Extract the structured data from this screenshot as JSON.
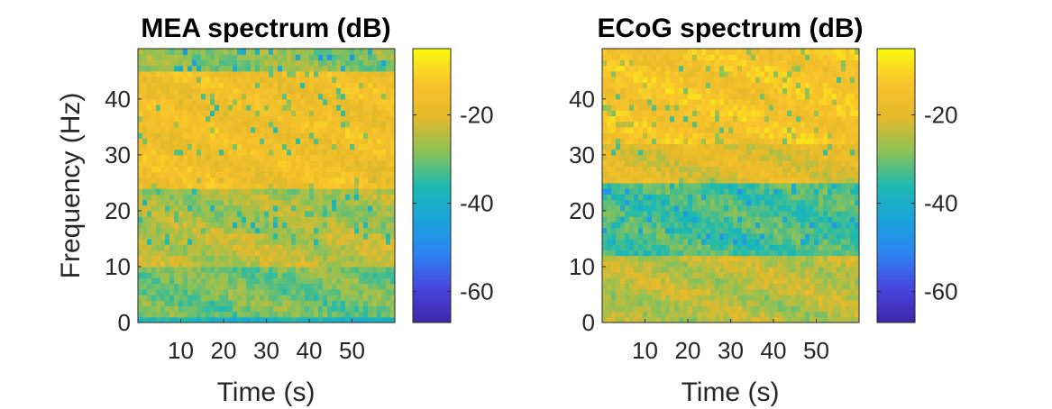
{
  "colormap": "parula",
  "colors": {
    "frame": "#262626",
    "background": "#ffffff"
  },
  "chart_data": [
    {
      "type": "heatmap",
      "title": "MEA spectrum (dB)",
      "xlabel": "Time (s)",
      "ylabel": "Frequency (Hz)",
      "xlim": [
        0,
        60
      ],
      "ylim": [
        0,
        49
      ],
      "xticks": [
        10,
        20,
        30,
        40,
        50
      ],
      "xtick_labels": [
        "10",
        "20",
        "30",
        "40",
        "50"
      ],
      "yticks": [
        0,
        10,
        20,
        30,
        40
      ],
      "ytick_labels": [
        "0",
        "10",
        "20",
        "30",
        "40"
      ],
      "colorbar": {
        "clim": [
          -67,
          -5
        ],
        "ticks": [
          -20,
          -40,
          -60
        ],
        "tick_labels": [
          "-20",
          "-40",
          "-60"
        ]
      },
      "description_values": {
        "band_power_db": [
          {
            "freq_range": [
              0,
              1
            ],
            "db": -38
          },
          {
            "freq_range": [
              1,
              10
            ],
            "db": -30
          },
          {
            "freq_range": [
              10,
              16
            ],
            "db": -24
          },
          {
            "freq_range": [
              16,
              24
            ],
            "db": -26
          },
          {
            "freq_range": [
              24,
              45
            ],
            "db": -16
          },
          {
            "freq_range": [
              45,
              49
            ],
            "db": -28
          }
        ]
      }
    },
    {
      "type": "heatmap",
      "title": "ECoG spectrum (dB)",
      "xlabel": "Time (s)",
      "ylabel": "",
      "xlim": [
        0,
        60
      ],
      "ylim": [
        0,
        49
      ],
      "xticks": [
        10,
        20,
        30,
        40,
        50
      ],
      "xtick_labels": [
        "10",
        "20",
        "30",
        "40",
        "50"
      ],
      "yticks": [
        0,
        10,
        20,
        30,
        40
      ],
      "ytick_labels": [
        "0",
        "10",
        "20",
        "30",
        "40"
      ],
      "colorbar": {
        "clim": [
          -67,
          -5
        ],
        "ticks": [
          -20,
          -40,
          -60
        ],
        "tick_labels": [
          "-20",
          "-40",
          "-60"
        ]
      },
      "description_values": {
        "band_power_db": [
          {
            "freq_range": [
              0,
              5
            ],
            "db": -25
          },
          {
            "freq_range": [
              5,
              12
            ],
            "db": -24
          },
          {
            "freq_range": [
              12,
              25
            ],
            "db": -33
          },
          {
            "freq_range": [
              25,
              32
            ],
            "db": -20
          },
          {
            "freq_range": [
              32,
              49
            ],
            "db": -14
          }
        ]
      }
    }
  ]
}
